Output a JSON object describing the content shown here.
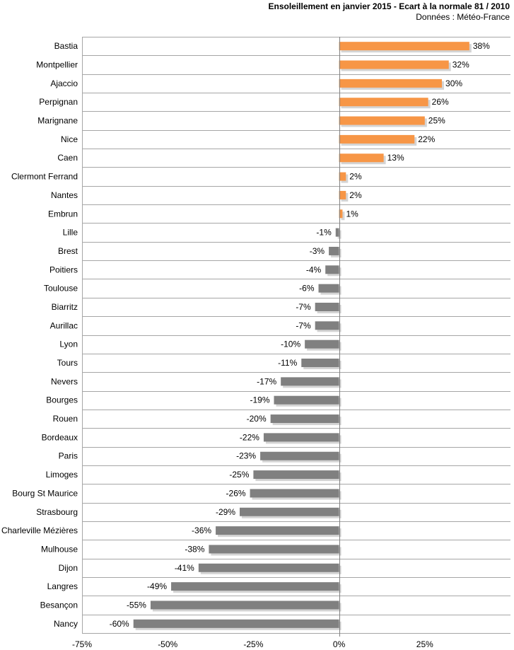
{
  "chart_data": {
    "type": "bar",
    "orientation": "horizontal",
    "title": "Ensoleillement en janvier 2015 - Ecart à la normale 81 / 2010",
    "subtitle": "Données : Météo-France",
    "categories": [
      "Bastia",
      "Montpellier",
      "Ajaccio",
      "Perpignan",
      "Marignane",
      "Nice",
      "Caen",
      "Clermont Ferrand",
      "Nantes",
      "Embrun",
      "Lille",
      "Brest",
      "Poitiers",
      "Toulouse",
      "Biarritz",
      "Aurillac",
      "Lyon",
      "Tours",
      "Nevers",
      "Bourges",
      "Rouen",
      "Bordeaux",
      "Paris",
      "Limoges",
      "Bourg St Maurice",
      "Strasbourg",
      "Charleville Mézières",
      "Mulhouse",
      "Dijon",
      "Langres",
      "Besançon",
      "Nancy"
    ],
    "values": [
      38,
      32,
      30,
      26,
      25,
      22,
      13,
      2,
      2,
      1,
      -1,
      -3,
      -4,
      -6,
      -7,
      -7,
      -10,
      -11,
      -17,
      -19,
      -20,
      -22,
      -23,
      -25,
      -26,
      -29,
      -36,
      -38,
      -41,
      -49,
      -55,
      -60
    ],
    "value_labels": [
      "38%",
      "32%",
      "30%",
      "26%",
      "25%",
      "22%",
      "13%",
      "2%",
      "2%",
      "1%",
      "-1%",
      "-3%",
      "-4%",
      "-6%",
      "-7%",
      "-7%",
      "-10%",
      "-11%",
      "-17%",
      "-19%",
      "-20%",
      "-22%",
      "-23%",
      "-25%",
      "-26%",
      "-29%",
      "-36%",
      "-38%",
      "-41%",
      "-49%",
      "-55%",
      "-60%"
    ],
    "x_ticks": [
      -75,
      -50,
      -25,
      0,
      25
    ],
    "x_tick_labels": [
      "-75%",
      "-50%",
      "-25%",
      "0%",
      "25%"
    ],
    "xlim": [
      -75,
      50
    ],
    "grid": "horizontal",
    "colors": {
      "positive": "#f79646",
      "negative": "#808080",
      "shadow": "#d4d4d4",
      "grid": "#a6a6a6"
    }
  }
}
